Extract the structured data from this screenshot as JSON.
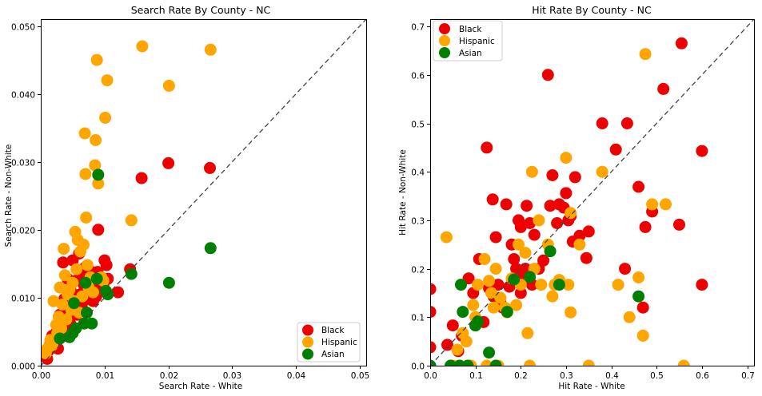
{
  "chart_data": [
    {
      "type": "scatter",
      "title": "Search Rate By County - NC",
      "xlabel": "Search Rate - White",
      "ylabel": "Search Rate - Non-White",
      "xlim": [
        0,
        0.051
      ],
      "ylim": [
        0,
        0.051
      ],
      "xticks": [
        "0.00",
        "0.01",
        "0.02",
        "0.03",
        "0.04",
        "0.05"
      ],
      "yticks": [
        "0.000",
        "0.010",
        "0.020",
        "0.030",
        "0.040",
        "0.050"
      ],
      "tick_values": [
        0,
        0.01,
        0.02,
        0.03,
        0.04,
        0.05
      ],
      "diagonal": true,
      "legend_position": "lower-right",
      "series": [
        {
          "name": "Black",
          "color": "#ee0000",
          "points": [
            [
              0.001,
              0.001
            ],
            [
              0.0012,
              0.0022
            ],
            [
              0.0015,
              0.0032
            ],
            [
              0.0018,
              0.0044
            ],
            [
              0.002,
              0.0028
            ],
            [
              0.0023,
              0.0036
            ],
            [
              0.0025,
              0.005
            ],
            [
              0.0027,
              0.0025
            ],
            [
              0.003,
              0.0075
            ],
            [
              0.0032,
              0.0042
            ],
            [
              0.0034,
              0.0065
            ],
            [
              0.0035,
              0.0152
            ],
            [
              0.0037,
              0.0098
            ],
            [
              0.004,
              0.0055
            ],
            [
              0.0042,
              0.0128
            ],
            [
              0.0044,
              0.0085
            ],
            [
              0.0046,
              0.0062
            ],
            [
              0.0048,
              0.0108
            ],
            [
              0.005,
              0.0155
            ],
            [
              0.0052,
              0.0092
            ],
            [
              0.0055,
              0.0125
            ],
            [
              0.0057,
              0.0075
            ],
            [
              0.006,
              0.0165
            ],
            [
              0.0062,
              0.0105
            ],
            [
              0.0064,
              0.0088
            ],
            [
              0.0066,
              0.0135
            ],
            [
              0.0068,
              0.0118
            ],
            [
              0.007,
              0.0145
            ],
            [
              0.0072,
              0.0098
            ],
            [
              0.0074,
              0.0125
            ],
            [
              0.0076,
              0.0132
            ],
            [
              0.0078,
              0.0108
            ],
            [
              0.008,
              0.0138
            ],
            [
              0.0082,
              0.0095
            ],
            [
              0.0085,
              0.0125
            ],
            [
              0.0087,
              0.0102
            ],
            [
              0.0089,
              0.0138
            ],
            [
              0.009,
              0.02
            ],
            [
              0.0092,
              0.0112
            ],
            [
              0.0095,
              0.0128
            ],
            [
              0.0098,
              0.0118
            ],
            [
              0.01,
              0.0155
            ],
            [
              0.0103,
              0.0148
            ],
            [
              0.0105,
              0.0128
            ],
            [
              0.0121,
              0.0108
            ],
            [
              0.014,
              0.0142
            ],
            [
              0.0158,
              0.0276
            ],
            [
              0.02,
              0.0298
            ],
            [
              0.0265,
              0.0291
            ]
          ]
        },
        {
          "name": "Hispanic",
          "color": "#ffa500",
          "points": [
            [
              0.0008,
              0.0018
            ],
            [
              0.001,
              0.0025
            ],
            [
              0.0015,
              0.0038
            ],
            [
              0.0018,
              0.003
            ],
            [
              0.002,
              0.0095
            ],
            [
              0.0024,
              0.006
            ],
            [
              0.0026,
              0.0048
            ],
            [
              0.0028,
              0.0072
            ],
            [
              0.003,
              0.0115
            ],
            [
              0.0032,
              0.0055
            ],
            [
              0.0034,
              0.009
            ],
            [
              0.0036,
              0.0172
            ],
            [
              0.0038,
              0.0133
            ],
            [
              0.004,
              0.0068
            ],
            [
              0.0042,
              0.0105
            ],
            [
              0.0045,
              0.0112
            ],
            [
              0.0048,
              0.0082
            ],
            [
              0.005,
              0.0122
            ],
            [
              0.0052,
              0.0095
            ],
            [
              0.0054,
              0.0197
            ],
            [
              0.0056,
              0.0142
            ],
            [
              0.0058,
              0.0185
            ],
            [
              0.006,
              0.0078
            ],
            [
              0.0062,
              0.0168
            ],
            [
              0.0065,
              0.0102
            ],
            [
              0.0067,
              0.0178
            ],
            [
              0.0069,
              0.0342
            ],
            [
              0.007,
              0.0282
            ],
            [
              0.0071,
              0.0218
            ],
            [
              0.0073,
              0.0148
            ],
            [
              0.0075,
              0.0115
            ],
            [
              0.0078,
              0.013
            ],
            [
              0.0082,
              0.0108
            ],
            [
              0.0085,
              0.0295
            ],
            [
              0.0086,
              0.0332
            ],
            [
              0.0088,
              0.045
            ],
            [
              0.009,
              0.0268
            ],
            [
              0.0095,
              0.013
            ],
            [
              0.0098,
              0.0125
            ],
            [
              0.0101,
              0.0365
            ],
            [
              0.0104,
              0.042
            ],
            [
              0.0142,
              0.0214
            ],
            [
              0.0159,
              0.047
            ],
            [
              0.0201,
              0.0412
            ],
            [
              0.0266,
              0.0465
            ]
          ]
        },
        {
          "name": "Asian",
          "color": "#008000",
          "points": [
            [
              0.003,
              0.004
            ],
            [
              0.0045,
              0.0042
            ],
            [
              0.005,
              0.0048
            ],
            [
              0.0052,
              0.0092
            ],
            [
              0.0055,
              0.0055
            ],
            [
              0.0068,
              0.0062
            ],
            [
              0.007,
              0.0122
            ],
            [
              0.0072,
              0.0078
            ],
            [
              0.008,
              0.0062
            ],
            [
              0.0088,
              0.0128
            ],
            [
              0.009,
              0.0281
            ],
            [
              0.0102,
              0.011
            ],
            [
              0.0105,
              0.0105
            ],
            [
              0.0142,
              0.0135
            ],
            [
              0.0201,
              0.0122
            ],
            [
              0.0266,
              0.0173
            ]
          ]
        }
      ]
    },
    {
      "type": "scatter",
      "title": "Hit Rate By County - NC",
      "xlabel": "Hit Rate - White",
      "ylabel": "Hit Rate - Non-White",
      "xlim": [
        0,
        0.715
      ],
      "ylim": [
        0,
        0.715
      ],
      "xticks": [
        "0.0",
        "0.1",
        "0.2",
        "0.3",
        "0.4",
        "0.5",
        "0.6",
        "0.7"
      ],
      "yticks": [
        "0.0",
        "0.1",
        "0.2",
        "0.3",
        "0.4",
        "0.5",
        "0.6",
        "0.7"
      ],
      "tick_values": [
        0,
        0.1,
        0.2,
        0.3,
        0.4,
        0.5,
        0.6,
        0.7
      ],
      "diagonal": true,
      "legend_position": "upper-left",
      "series": [
        {
          "name": "Black",
          "color": "#ee0000",
          "points": [
            [
              0.0,
              0.038
            ],
            [
              0.0,
              0.111
            ],
            [
              0.0,
              0.158
            ],
            [
              0.038,
              0.043
            ],
            [
              0.05,
              0.083
            ],
            [
              0.062,
              0.03
            ],
            [
              0.07,
              0.062
            ],
            [
              0.085,
              0.18
            ],
            [
              0.095,
              0.15
            ],
            [
              0.1,
              0.083
            ],
            [
              0.108,
              0.22
            ],
            [
              0.118,
              0.09
            ],
            [
              0.125,
              0.45
            ],
            [
              0.13,
              0.16
            ],
            [
              0.138,
              0.343
            ],
            [
              0.14,
              0.143
            ],
            [
              0.145,
              0.265
            ],
            [
              0.15,
              0.167
            ],
            [
              0.155,
              0.13
            ],
            [
              0.16,
              0.12
            ],
            [
              0.168,
              0.333
            ],
            [
              0.175,
              0.163
            ],
            [
              0.18,
              0.25
            ],
            [
              0.185,
              0.22
            ],
            [
              0.19,
              0.2
            ],
            [
              0.195,
              0.3
            ],
            [
              0.2,
              0.286
            ],
            [
              0.2,
              0.15
            ],
            [
              0.205,
              0.182
            ],
            [
              0.21,
              0.2
            ],
            [
              0.213,
              0.33
            ],
            [
              0.22,
              0.294
            ],
            [
              0.225,
              0.167
            ],
            [
              0.23,
              0.27
            ],
            [
              0.24,
              0.2
            ],
            [
              0.25,
              0.217
            ],
            [
              0.26,
              0.6
            ],
            [
              0.265,
              0.33
            ],
            [
              0.27,
              0.393
            ],
            [
              0.28,
              0.294
            ],
            [
              0.285,
              0.333
            ],
            [
              0.295,
              0.326
            ],
            [
              0.3,
              0.356
            ],
            [
              0.305,
              0.3
            ],
            [
              0.31,
              0.308
            ],
            [
              0.315,
              0.256
            ],
            [
              0.32,
              0.389
            ],
            [
              0.33,
              0.268
            ],
            [
              0.345,
              0.222
            ],
            [
              0.35,
              0.277
            ],
            [
              0.38,
              0.5
            ],
            [
              0.41,
              0.446
            ],
            [
              0.43,
              0.2
            ],
            [
              0.435,
              0.5
            ],
            [
              0.46,
              0.369
            ],
            [
              0.47,
              0.12
            ],
            [
              0.475,
              0.286
            ],
            [
              0.49,
              0.318
            ],
            [
              0.515,
              0.571
            ],
            [
              0.55,
              0.291
            ],
            [
              0.555,
              0.665
            ],
            [
              0.6,
              0.167
            ],
            [
              0.6,
              0.443
            ]
          ]
        },
        {
          "name": "Hispanic",
          "color": "#ffa500",
          "points": [
            [
              0.036,
              0.265
            ],
            [
              0.05,
              0.0
            ],
            [
              0.06,
              0.033
            ],
            [
              0.072,
              0.067
            ],
            [
              0.08,
              0.05
            ],
            [
              0.09,
              0.0
            ],
            [
              0.095,
              0.125
            ],
            [
              0.1,
              0.1
            ],
            [
              0.105,
              0.167
            ],
            [
              0.12,
              0.22
            ],
            [
              0.125,
              0.0
            ],
            [
              0.13,
              0.175
            ],
            [
              0.135,
              0.15
            ],
            [
              0.14,
              0.12
            ],
            [
              0.145,
              0.2
            ],
            [
              0.15,
              0.0
            ],
            [
              0.155,
              0.14
            ],
            [
              0.165,
              0.12
            ],
            [
              0.17,
              0.11
            ],
            [
              0.18,
              0.18
            ],
            [
              0.19,
              0.125
            ],
            [
              0.195,
              0.25
            ],
            [
              0.2,
              0.167
            ],
            [
              0.21,
              0.233
            ],
            [
              0.215,
              0.067
            ],
            [
              0.22,
              0.0
            ],
            [
              0.225,
              0.4
            ],
            [
              0.23,
              0.2
            ],
            [
              0.24,
              0.3
            ],
            [
              0.245,
              0.167
            ],
            [
              0.26,
              0.25
            ],
            [
              0.27,
              0.143
            ],
            [
              0.275,
              0.167
            ],
            [
              0.285,
              0.177
            ],
            [
              0.3,
              0.429
            ],
            [
              0.305,
              0.167
            ],
            [
              0.31,
              0.11
            ],
            [
              0.31,
              0.315
            ],
            [
              0.33,
              0.25
            ],
            [
              0.35,
              0.0
            ],
            [
              0.38,
              0.4
            ],
            [
              0.415,
              0.167
            ],
            [
              0.44,
              0.1
            ],
            [
              0.46,
              0.182
            ],
            [
              0.47,
              0.062
            ],
            [
              0.475,
              0.643
            ],
            [
              0.49,
              0.333
            ],
            [
              0.52,
              0.333
            ],
            [
              0.56,
              0.0
            ]
          ]
        },
        {
          "name": "Asian",
          "color": "#008000",
          "points": [
            [
              0.0,
              0.0
            ],
            [
              0.045,
              0.0
            ],
            [
              0.065,
              0.0
            ],
            [
              0.068,
              0.167
            ],
            [
              0.072,
              0.111
            ],
            [
              0.083,
              0.0
            ],
            [
              0.1,
              0.083
            ],
            [
              0.105,
              0.091
            ],
            [
              0.13,
              0.027
            ],
            [
              0.145,
              0.0
            ],
            [
              0.17,
              0.111
            ],
            [
              0.185,
              0.178
            ],
            [
              0.22,
              0.183
            ],
            [
              0.265,
              0.236
            ],
            [
              0.285,
              0.167
            ],
            [
              0.46,
              0.143
            ]
          ]
        }
      ]
    }
  ]
}
